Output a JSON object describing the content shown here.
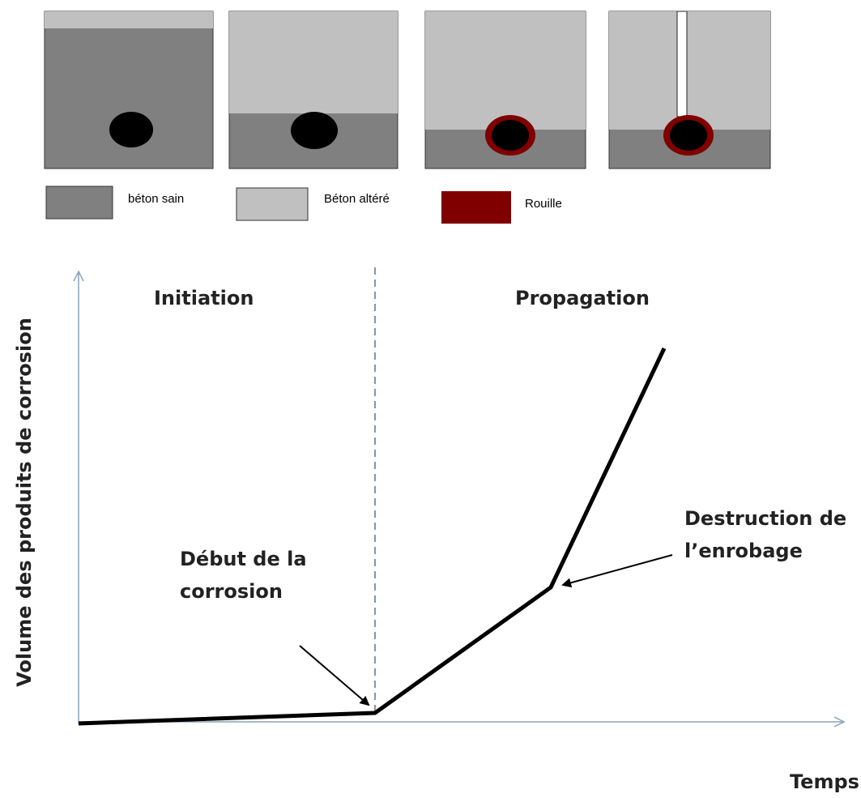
{
  "legend": {
    "items": [
      {
        "label": "béton sain"
      },
      {
        "label": "Béton altéré"
      },
      {
        "label": "Rouille"
      }
    ]
  },
  "graph": {
    "phases": [
      "Initiation",
      "Propagation"
    ],
    "annotations": [
      {
        "lines": [
          "Début de la",
          "corrosion"
        ]
      },
      {
        "lines": [
          "Destruction de",
          "l’enrobage"
        ]
      }
    ],
    "y_axis_label": "Volume des produits de corrosion",
    "x_axis_label": "Temps"
  }
}
